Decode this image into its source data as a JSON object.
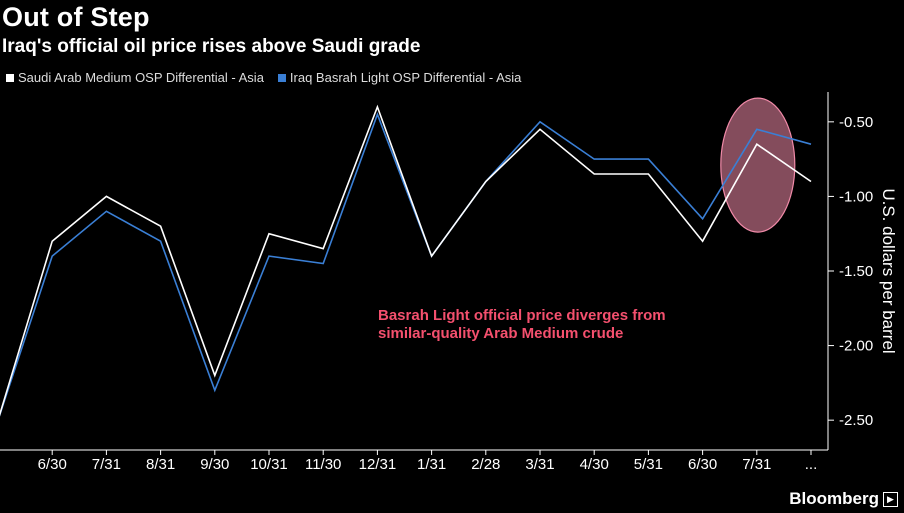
{
  "chart_data": {
    "type": "line",
    "title": "Out of Step",
    "subtitle": "Iraq's official oil price rises above Saudi grade",
    "ylabel": "U.S. dollars per barrel",
    "ylim": [
      -2.7,
      -0.3
    ],
    "yticks": [
      -0.5,
      -1.0,
      -1.5,
      -2.0,
      -2.5
    ],
    "ytick_labels": [
      "-0.50",
      "-1.00",
      "-1.50",
      "-2.00",
      "-2.50"
    ],
    "x_tick_labels": [
      "6/30",
      "7/31",
      "8/31",
      "9/30",
      "10/31",
      "11/30",
      "12/31",
      "1/31",
      "2/28",
      "3/31",
      "4/30",
      "5/31",
      "6/30",
      "7/31",
      "..."
    ],
    "series": [
      {
        "name": "Saudi Arab Medium OSP Differential - Asia",
        "color": "#ffffff",
        "values": [
          -2.5,
          -1.3,
          -1.0,
          -1.2,
          -2.2,
          -1.25,
          -1.35,
          -0.4,
          -1.4,
          -0.9,
          -0.55,
          -0.85,
          -0.85,
          -1.3,
          -0.65,
          -0.9
        ]
      },
      {
        "name": "Iraq Basrah Light OSP Differential - Asia",
        "color": "#3a7fd5",
        "values": [
          -2.5,
          -1.4,
          -1.1,
          -1.3,
          -2.3,
          -1.4,
          -1.45,
          -0.45,
          -1.4,
          -0.9,
          -0.5,
          -0.75,
          -0.75,
          -1.15,
          -0.55,
          -0.65
        ]
      }
    ],
    "annotation": "Basrah Light official price diverges from similar-quality Arab Medium crude",
    "annotation_lines": [
      "Basrah Light official price diverges from",
      "similar-quality Arab Medium crude"
    ],
    "highlight_color": "#f08aa8",
    "grid": false
  },
  "source": "Bloomberg"
}
